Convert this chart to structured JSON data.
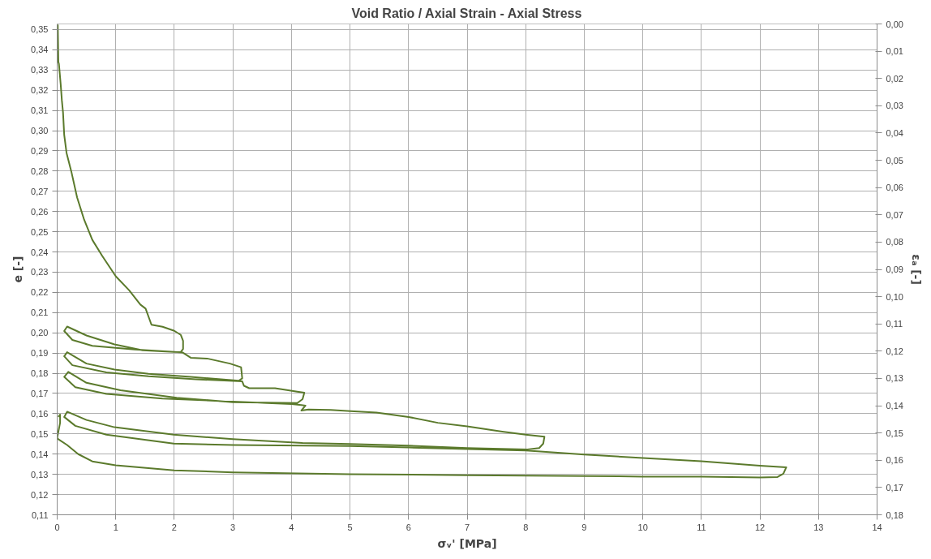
{
  "chart_data": {
    "type": "line",
    "title": "Void Ratio / Axial Strain - Axial Stress",
    "xlabel": "σᵥ' [MPa]",
    "ylabel": "e [-]",
    "y2label": "εₐ [-]",
    "xlim": [
      0,
      14
    ],
    "xticks": [
      0,
      1,
      2,
      3,
      4,
      5,
      6,
      7,
      8,
      9,
      10,
      11,
      12,
      13,
      14
    ],
    "ylim": [
      0.11,
      0.3528
    ],
    "yticks": [
      {
        "value": 0.11,
        "label": "0,11"
      },
      {
        "value": 0.12,
        "label": "0,12"
      },
      {
        "value": 0.13,
        "label": "0,13"
      },
      {
        "value": 0.14,
        "label": "0,14"
      },
      {
        "value": 0.15,
        "label": "0,15"
      },
      {
        "value": 0.16,
        "label": "0,16"
      },
      {
        "value": 0.17,
        "label": "0,17"
      },
      {
        "value": 0.18,
        "label": "0,18"
      },
      {
        "value": 0.19,
        "label": "0,19"
      },
      {
        "value": 0.2,
        "label": "0,20"
      },
      {
        "value": 0.21,
        "label": "0,21"
      },
      {
        "value": 0.22,
        "label": "0,22"
      },
      {
        "value": 0.23,
        "label": "0,23"
      },
      {
        "value": 0.24,
        "label": "0,24"
      },
      {
        "value": 0.25,
        "label": "0,25"
      },
      {
        "value": 0.26,
        "label": "0,26"
      },
      {
        "value": 0.27,
        "label": "0,27"
      },
      {
        "value": 0.28,
        "label": "0,28"
      },
      {
        "value": 0.29,
        "label": "0,29"
      },
      {
        "value": 0.3,
        "label": "0,30"
      },
      {
        "value": 0.31,
        "label": "0,31"
      },
      {
        "value": 0.32,
        "label": "0,32"
      },
      {
        "value": 0.33,
        "label": "0,33"
      },
      {
        "value": 0.34,
        "label": "0,34"
      },
      {
        "value": 0.35,
        "label": "0,35"
      }
    ],
    "y2lim": [
      0.18,
      0.0
    ],
    "y2ticks": [
      {
        "value": 0.0,
        "label": "0,00"
      },
      {
        "value": 0.01,
        "label": "0,01"
      },
      {
        "value": 0.02,
        "label": "0,02"
      },
      {
        "value": 0.03,
        "label": "0,03"
      },
      {
        "value": 0.04,
        "label": "0,04"
      },
      {
        "value": 0.05,
        "label": "0,05"
      },
      {
        "value": 0.06,
        "label": "0,06"
      },
      {
        "value": 0.07,
        "label": "0,07"
      },
      {
        "value": 0.08,
        "label": "0,08"
      },
      {
        "value": 0.09,
        "label": "0,09"
      },
      {
        "value": 0.1,
        "label": "0,10"
      },
      {
        "value": 0.11,
        "label": "0,11"
      },
      {
        "value": 0.12,
        "label": "0,12"
      },
      {
        "value": 0.13,
        "label": "0,13"
      },
      {
        "value": 0.14,
        "label": "0,14"
      },
      {
        "value": 0.15,
        "label": "0,15"
      },
      {
        "value": 0.16,
        "label": "0,16"
      },
      {
        "value": 0.17,
        "label": "0,17"
      },
      {
        "value": 0.18,
        "label": "0,18"
      }
    ],
    "grid": true,
    "marker": "none",
    "line_style": "solid",
    "series": [
      {
        "color": "#5b7a2c",
        "x": [
          0.01,
          0.02,
          0.03,
          0.06,
          0.08,
          0.1,
          0.12,
          0.16,
          0.24,
          0.34,
          0.46,
          0.6,
          0.77,
          1.0,
          1.23,
          1.42,
          1.51,
          1.61,
          1.8,
          2.0,
          2.11,
          2.15,
          2.15,
          2.11,
          1.99,
          1.46,
          0.98,
          0.5,
          0.17,
          0.12,
          0.26,
          0.6,
          1.32,
          2.0,
          2.14,
          2.28,
          2.56,
          2.95,
          3.14,
          3.16,
          3.1,
          2.28,
          1.56,
          0.98,
          0.5,
          0.17,
          0.12,
          0.26,
          0.84,
          1.56,
          2.37,
          3.16,
          3.19,
          3.28,
          3.72,
          4.1,
          4.22,
          4.19,
          4.1,
          3.0,
          2.04,
          1.08,
          0.5,
          0.19,
          0.12,
          0.31,
          0.84,
          1.8,
          3.0,
          4.0,
          4.17,
          4.24,
          4.17,
          4.29,
          4.67,
          5.01,
          5.45,
          6.0,
          6.5,
          7.0,
          7.6,
          8.0,
          8.32,
          8.3,
          8.23,
          8.03,
          7.0,
          6.0,
          5.0,
          4.19,
          3.0,
          1.99,
          0.98,
          0.5,
          0.17,
          0.12,
          0.31,
          0.84,
          1.99,
          3.0,
          5.0,
          6.0,
          7.0,
          8.0,
          9.0,
          10.0,
          11.0,
          12.0,
          12.45,
          12.4,
          12.3,
          12.0,
          11.0,
          10.0,
          9.0,
          7.0,
          5.0,
          3.0,
          2.0,
          1.0,
          0.6,
          0.36,
          0.17,
          0.02,
          0.0,
          0.05,
          0.05,
          0.02
        ],
        "values": [
          0.3525,
          0.334,
          0.333,
          0.323,
          0.315,
          0.309,
          0.298,
          0.289,
          0.28,
          0.267,
          0.256,
          0.246,
          0.238,
          0.228,
          0.221,
          0.214,
          0.212,
          0.204,
          0.203,
          0.201,
          0.199,
          0.196,
          0.192,
          0.1905,
          0.1906,
          0.1914,
          0.1943,
          0.1987,
          0.2031,
          0.2009,
          0.1965,
          0.1936,
          0.1918,
          0.1906,
          0.1903,
          0.1877,
          0.1873,
          0.1848,
          0.183,
          0.1775,
          0.1763,
          0.1782,
          0.1797,
          0.1818,
          0.1848,
          0.1904,
          0.1884,
          0.184,
          0.1804,
          0.1785,
          0.177,
          0.176,
          0.1738,
          0.1726,
          0.1726,
          0.1709,
          0.1704,
          0.1672,
          0.1653,
          0.1657,
          0.1679,
          0.1716,
          0.1753,
          0.1807,
          0.1782,
          0.1731,
          0.1698,
          0.1675,
          0.166,
          0.1648,
          0.1643,
          0.164,
          0.1616,
          0.1621,
          0.1619,
          0.1613,
          0.1606,
          0.1584,
          0.1555,
          0.1537,
          0.1511,
          0.1496,
          0.1486,
          0.1452,
          0.143,
          0.1423,
          0.143,
          0.1442,
          0.145,
          0.1455,
          0.1474,
          0.1496,
          0.1533,
          0.1569,
          0.161,
          0.1584,
          0.154,
          0.1496,
          0.1452,
          0.1445,
          0.144,
          0.1433,
          0.1425,
          0.1418,
          0.1398,
          0.1381,
          0.1365,
          0.1343,
          0.1335,
          0.1303,
          0.1287,
          0.1285,
          0.1289,
          0.1289,
          0.1292,
          0.1296,
          0.1301,
          0.131,
          0.132,
          0.1345,
          0.1364,
          0.14,
          0.1445,
          0.1474,
          0.1481,
          0.1555,
          0.1596,
          0.1584
        ]
      }
    ]
  }
}
